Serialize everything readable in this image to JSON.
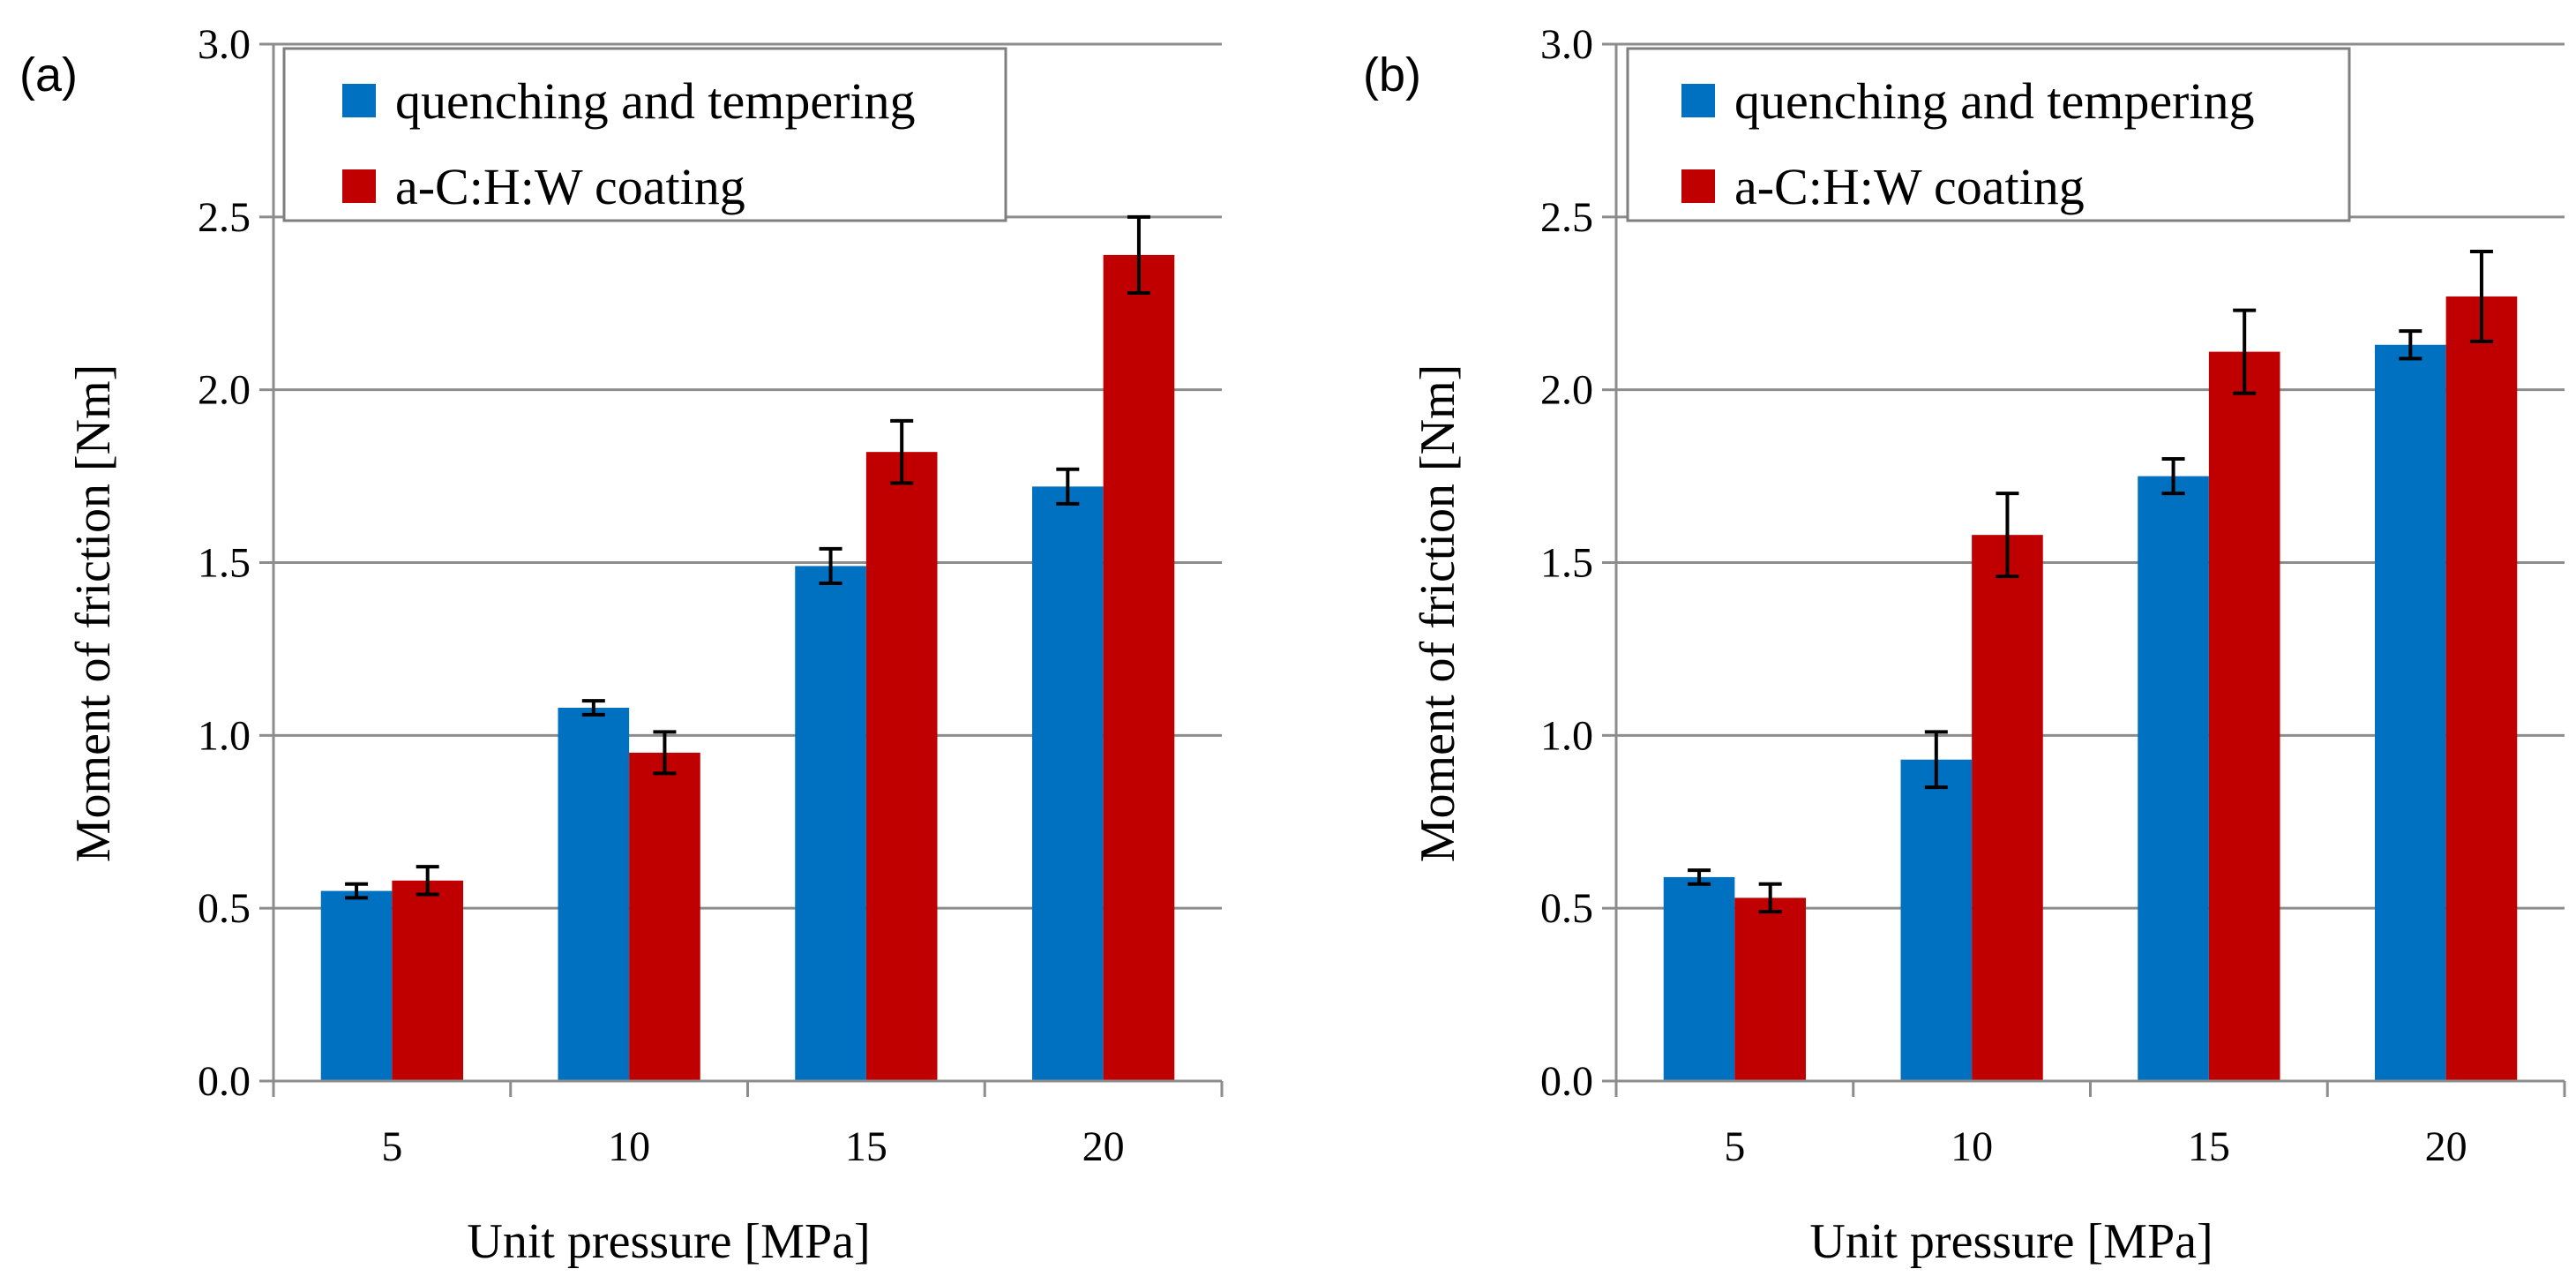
{
  "chart_data": [
    {
      "type": "bar",
      "panel_label": "(a)",
      "categories": [
        "5",
        "10",
        "15",
        "20"
      ],
      "series": [
        {
          "name": "quenching and tempering",
          "color": "#0070C0",
          "values": [
            0.55,
            1.08,
            1.49,
            1.72
          ],
          "errors": [
            0.02,
            0.02,
            0.05,
            0.05
          ]
        },
        {
          "name": "a-C:H:W coating",
          "color": "#C00000",
          "values": [
            0.58,
            0.95,
            1.82,
            2.39
          ],
          "errors": [
            0.04,
            0.06,
            0.09,
            0.11
          ]
        }
      ],
      "xlabel": "Unit pressure [MPa]",
      "ylabel": "Moment of friction [Nm]",
      "ylim": [
        0,
        3.0
      ],
      "yticks": [
        "0.0",
        "0.5",
        "1.0",
        "1.5",
        "2.0",
        "2.5",
        "3.0"
      ],
      "grid": true,
      "legend_position": "top-left"
    },
    {
      "type": "bar",
      "panel_label": "(b)",
      "categories": [
        "5",
        "10",
        "15",
        "20"
      ],
      "series": [
        {
          "name": "quenching and tempering",
          "color": "#0070C0",
          "values": [
            0.59,
            0.93,
            1.75,
            2.13
          ],
          "errors": [
            0.02,
            0.08,
            0.05,
            0.04
          ]
        },
        {
          "name": "a-C:H:W coating",
          "color": "#C00000",
          "values": [
            0.53,
            1.58,
            2.11,
            2.27
          ],
          "errors": [
            0.04,
            0.12,
            0.12,
            0.13
          ]
        }
      ],
      "xlabel": "Unit pressure [MPa]",
      "ylabel": "Moment of friction  [Nm]",
      "ylim": [
        0,
        3.0
      ],
      "yticks": [
        "0.0",
        "0.5",
        "1.0",
        "1.5",
        "2.0",
        "2.5",
        "3.0"
      ],
      "grid": true,
      "legend_position": "top-left"
    }
  ]
}
